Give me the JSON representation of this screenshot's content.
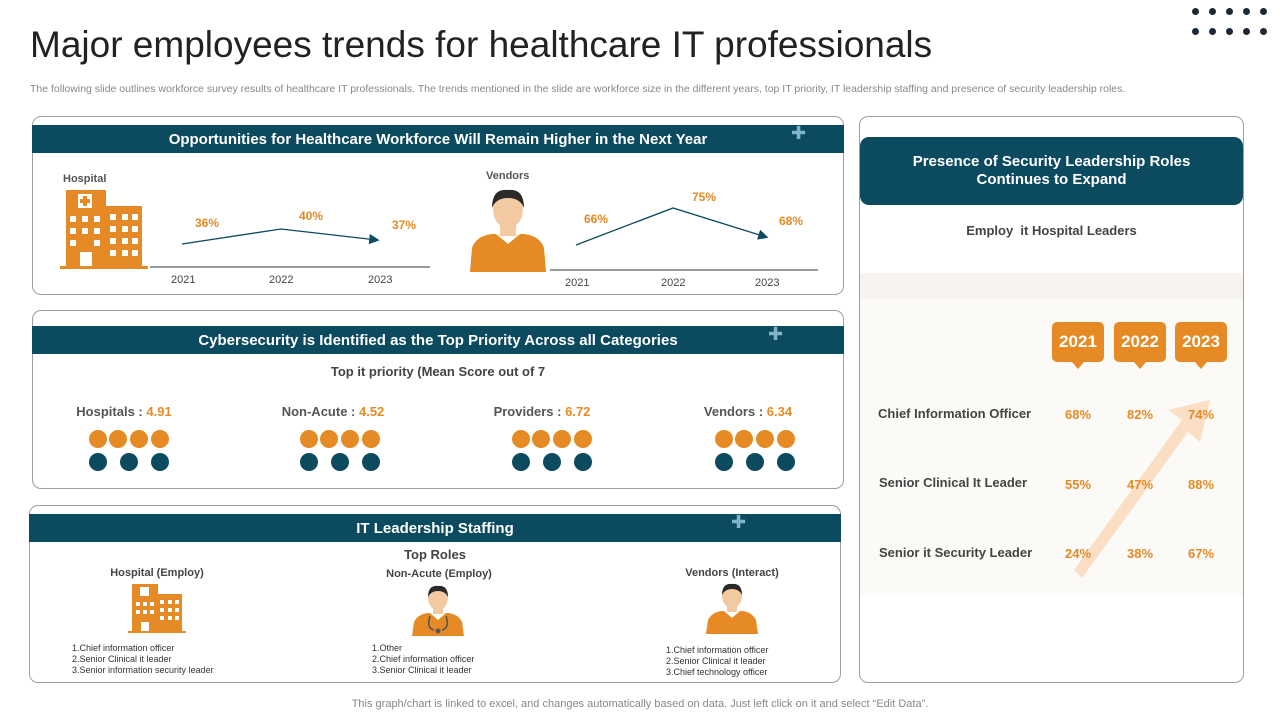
{
  "title": "Major employees trends for healthcare IT professionals",
  "subtitle": "The following slide outlines workforce survey results of healthcare IT professionals. The trends mentioned in the slide are workforce size in the different years, top IT priority, IT leadership staffing and presence of security leadership roles.",
  "workforce": {
    "heading": "Opportunities for Healthcare Workforce Will Remain Higher in the Next Year",
    "hospital": {
      "label": "Hospital",
      "values": [
        "36%",
        "40%",
        "37%"
      ],
      "years": [
        "2021",
        "2022",
        "2023"
      ]
    },
    "vendors": {
      "label": "Vendors",
      "values": [
        "66%",
        "75%",
        "68%"
      ],
      "years": [
        "2021",
        "2022",
        "2023"
      ]
    }
  },
  "priority": {
    "heading": "Cybersecurity is Identified as the Top Priority Across all Categories",
    "subheading": "Top it priority (Mean Score out of 7",
    "items": [
      {
        "label": "Hospitals",
        "sep": " : ",
        "score": "4.91"
      },
      {
        "label": "Non-Acute",
        "sep": " : ",
        "score": "4.52"
      },
      {
        "label": "Providers",
        "sep": " : ",
        "score": "6.72"
      },
      {
        "label": "Vendors",
        "sep": " : ",
        "score": "6.34"
      }
    ]
  },
  "staffing": {
    "heading": "IT Leadership Staffing",
    "subheading": "Top Roles",
    "groups": [
      {
        "title": "Hospital (Employ)",
        "roles": [
          "1.Chief information officer",
          "2.Senior Clinical it leader",
          "3.Senior information security leader"
        ]
      },
      {
        "title": "Non-Acute (Employ)",
        "roles": [
          "1.Other",
          "2.Chief information officer",
          "3.Senior Clinical it leader"
        ]
      },
      {
        "title": "Vendors (Interact)",
        "roles": [
          "1.Chief information officer",
          "2.Senior Clinical it leader",
          "3.Chief technology officer"
        ]
      }
    ]
  },
  "security": {
    "heading": "Presence of Security Leadership Roles Continues to Expand",
    "subheading": "Employ  it Hospital Leaders",
    "years": [
      "2021",
      "2022",
      "2023"
    ],
    "rows": [
      {
        "label": "Chief Information Officer",
        "values": [
          "68%",
          "82%",
          "74%"
        ]
      },
      {
        "label": "Senior Clinical It Leader",
        "values": [
          "55%",
          "47%",
          "88%"
        ]
      },
      {
        "label": "Senior it Security Leader",
        "values": [
          "24%",
          "38%",
          "67%"
        ]
      }
    ]
  },
  "footer": "This graph/chart is linked to excel,  and changes automatically based on data. Just left click on it and select “Edit Data”.",
  "colors": {
    "accent": "#e58a24",
    "primary": "#0c4a60"
  }
}
